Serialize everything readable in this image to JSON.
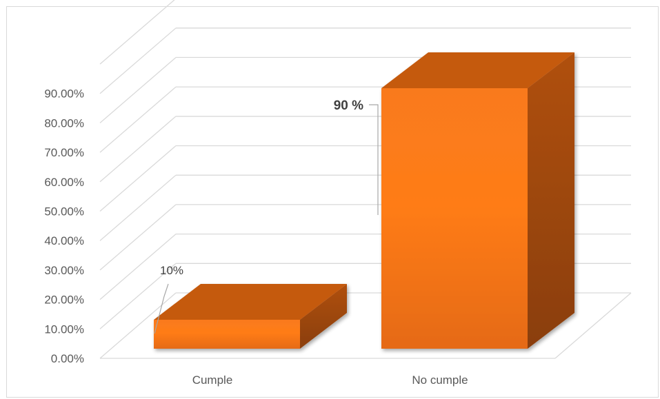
{
  "chart_data": {
    "type": "bar",
    "title": "",
    "xlabel": "",
    "ylabel": "",
    "categories": [
      "Cumple",
      "No cumple"
    ],
    "values": [
      10,
      90
    ],
    "data_labels": [
      "10%",
      "90 %"
    ],
    "ylim": [
      0,
      100
    ],
    "yticks": [
      0,
      10,
      20,
      30,
      40,
      50,
      60,
      70,
      80,
      90
    ],
    "ytick_labels": [
      "0.00%",
      "10.00%",
      "20.00%",
      "30.00%",
      "40.00%",
      "50.00%",
      "60.00%",
      "70.00%",
      "80.00%",
      "90.00%"
    ],
    "grid": true,
    "legend": "none",
    "style": "3d-column",
    "colors": {
      "bar_front": "#f4761a",
      "bar_top": "#c55a11",
      "bar_side": "#a34a0c",
      "grid": "#d9d9d9",
      "text": "#595959"
    }
  }
}
